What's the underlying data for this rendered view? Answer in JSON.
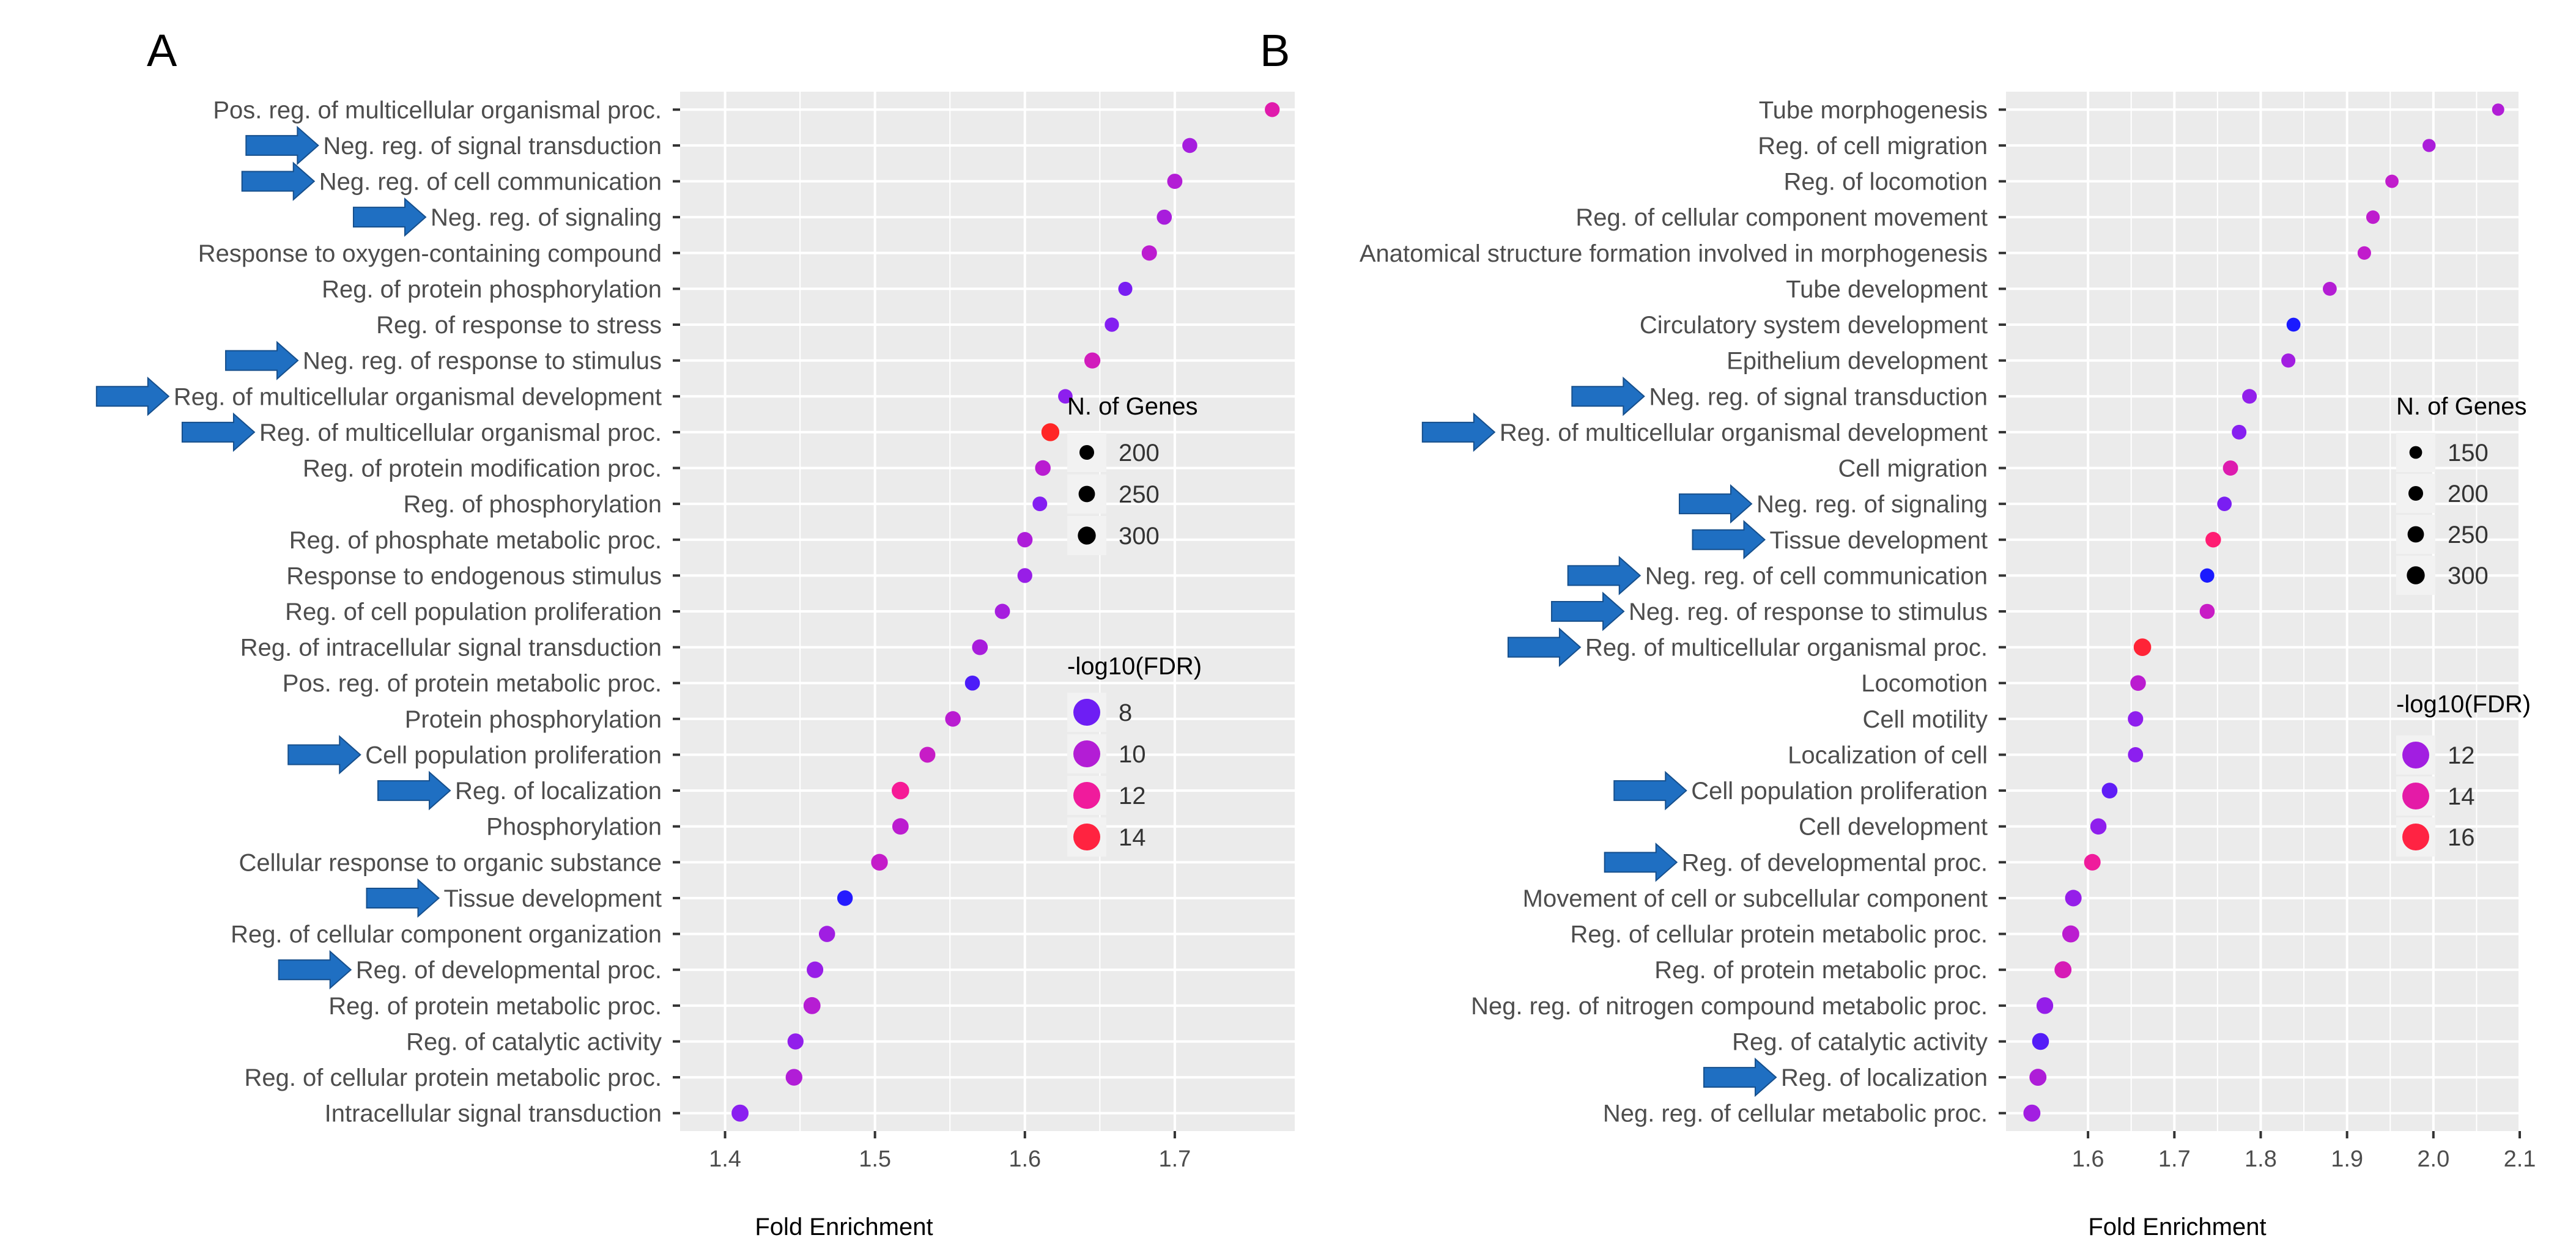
{
  "figure": {
    "panels": [
      "A",
      "B"
    ]
  },
  "colors": {
    "panel_background": "#ebebeb",
    "grid": "#ffffff",
    "arrow": "#1f6fc2",
    "text": "#4d4d4d",
    "title": "#000000",
    "legend_key_bg": "#f2f2f2",
    "fdr_gradient": [
      "#1a1aff",
      "#8a1ff0",
      "#c11ccc",
      "#ff1a8c",
      "#ff2626"
    ]
  },
  "chart_data": [
    {
      "type": "scatter",
      "panel_label": "A",
      "xlabel": "Fold Enrichment",
      "ylabel": "",
      "xlim": [
        1.37,
        1.78
      ],
      "x_ticks": [
        1.4,
        1.5,
        1.6,
        1.7
      ],
      "x_tick_labels": [
        "1.4",
        "1.5",
        "1.6",
        "1.7"
      ],
      "grid": true,
      "categories": [
        "Pos. reg. of multicellular organismal proc.",
        "Neg. reg. of signal transduction",
        "Neg. reg. of cell communication",
        "Neg. reg. of signaling",
        "Response to oxygen-containing compound",
        "Reg. of protein phosphorylation",
        "Reg. of response to stress",
        "Neg. reg. of response to stimulus",
        "Reg. of multicellular organismal development",
        "Reg. of multicellular organismal proc.",
        "Reg. of protein modification proc.",
        "Reg. of phosphorylation",
        "Reg. of phosphate metabolic proc.",
        "Response to endogenous stimulus",
        "Reg. of cell population proliferation",
        "Reg. of intracellular signal transduction",
        "Pos. reg. of protein metabolic proc.",
        "Protein phosphorylation",
        "Cell population proliferation",
        "Reg. of localization",
        "Phosphorylation",
        "Cellular response to organic substance",
        "Tissue development",
        "Reg. of cellular component organization",
        "Reg. of developmental proc.",
        "Reg. of protein metabolic proc.",
        "Reg. of catalytic activity",
        "Reg. of cellular protein metabolic proc.",
        "Intracellular signal transduction"
      ],
      "fold_enrichment": [
        1.765,
        1.71,
        1.7,
        1.693,
        1.683,
        1.667,
        1.658,
        1.645,
        1.627,
        1.617,
        1.612,
        1.61,
        1.6,
        1.6,
        1.585,
        1.57,
        1.565,
        1.552,
        1.535,
        1.517,
        1.517,
        1.503,
        1.48,
        1.468,
        1.46,
        1.458,
        1.447,
        1.446,
        1.41
      ],
      "n_genes": [
        205,
        210,
        215,
        212,
        218,
        185,
        190,
        240,
        195,
        300,
        225,
        200,
        220,
        205,
        215,
        230,
        210,
        225,
        235,
        285,
        250,
        260,
        225,
        245,
        255,
        270,
        240,
        260,
        270
      ],
      "neg_log10_fdr": [
        11.5,
        9.5,
        10.0,
        9.6,
        10.3,
        8.2,
        8.4,
        11.0,
        8.6,
        14.5,
        10.2,
        8.4,
        9.8,
        9.0,
        9.5,
        9.6,
        7.4,
        10.2,
        10.7,
        12.2,
        10.3,
        10.6,
        6.7,
        9.3,
        9.0,
        10.1,
        8.8,
        9.9,
        8.5
      ],
      "arrows": [
        false,
        true,
        true,
        true,
        false,
        false,
        false,
        true,
        true,
        true,
        false,
        false,
        false,
        false,
        false,
        false,
        false,
        false,
        true,
        true,
        false,
        false,
        true,
        false,
        true,
        false,
        false,
        false,
        false
      ],
      "legend_size": {
        "title": "N. of Genes",
        "values": [
          200,
          250,
          300
        ],
        "labels": [
          "200",
          "250",
          "300"
        ]
      },
      "legend_color": {
        "title": "-log10(FDR)",
        "values": [
          8,
          10,
          12,
          14
        ],
        "labels": [
          "8",
          "10",
          "12",
          "14"
        ],
        "range": [
          6.5,
          14.5
        ]
      }
    },
    {
      "type": "scatter",
      "panel_label": "B",
      "xlabel": "Fold Enrichment",
      "ylabel": "",
      "xlim": [
        1.505,
        2.1
      ],
      "x_ticks": [
        1.6,
        1.7,
        1.8,
        1.9,
        2.0,
        2.1
      ],
      "x_tick_labels": [
        "1.6",
        "1.7",
        "1.8",
        "1.9",
        "2.0",
        "2.1"
      ],
      "grid": true,
      "categories": [
        "Tube morphogenesis",
        "Reg. of cell migration",
        "Reg. of locomotion",
        "Reg. of cellular component movement",
        "Anatomical structure formation involved in morphogenesis",
        "Tube development",
        "Circulatory system development",
        "Epithelium development",
        "Neg. reg. of signal transduction",
        "Reg. of multicellular organismal development",
        "Cell migration",
        "Neg. reg. of signaling",
        "Tissue development",
        "Neg. reg. of cell communication",
        "Neg. reg. of response to stimulus",
        "Reg. of multicellular organismal proc.",
        "Locomotion",
        "Cell motility",
        "Localization of cell",
        "Cell population proliferation",
        "Cell development",
        "Reg. of developmental proc.",
        "Movement of cell or subcellular component",
        "Reg. of cellular protein metabolic proc.",
        "Reg. of protein metabolic proc.",
        "Neg. reg. of nitrogen compound metabolic proc.",
        "Reg. of catalytic activity",
        "Reg. of localization",
        "Neg. reg. of cellular metabolic proc."
      ],
      "fold_enrichment": [
        2.075,
        1.995,
        1.952,
        1.93,
        1.92,
        1.88,
        1.838,
        1.832,
        1.787,
        1.775,
        1.765,
        1.758,
        1.745,
        1.738,
        1.738,
        1.663,
        1.658,
        1.655,
        1.655,
        1.625,
        1.612,
        1.605,
        1.583,
        1.58,
        1.571,
        1.55,
        1.545,
        1.542,
        1.535
      ],
      "n_genes": [
        140,
        160,
        165,
        170,
        170,
        180,
        180,
        185,
        200,
        200,
        215,
        195,
        225,
        190,
        210,
        285,
        225,
        220,
        215,
        230,
        245,
        255,
        255,
        270,
        270,
        260,
        265,
        270,
        270
      ],
      "neg_log10_fdr": [
        12.5,
        12.3,
        13.0,
        12.9,
        13.0,
        12.6,
        9.5,
        12.0,
        11.5,
        11.2,
        13.8,
        11.0,
        15.2,
        9.5,
        13.2,
        16.2,
        12.8,
        11.4,
        11.3,
        10.6,
        11.4,
        14.3,
        11.6,
        12.8,
        13.6,
        11.6,
        10.4,
        12.4,
        12.0
      ],
      "arrows": [
        false,
        false,
        false,
        false,
        false,
        false,
        false,
        false,
        true,
        true,
        false,
        true,
        true,
        true,
        true,
        true,
        false,
        false,
        false,
        true,
        false,
        true,
        false,
        false,
        false,
        false,
        false,
        true,
        false
      ],
      "legend_size": {
        "title": "N. of Genes",
        "values": [
          150,
          200,
          250,
          300
        ],
        "labels": [
          "150",
          "200",
          "250",
          "300"
        ]
      },
      "legend_color": {
        "title": "-log10(FDR)",
        "values": [
          12,
          14,
          16
        ],
        "labels": [
          "12",
          "14",
          "16"
        ],
        "range": [
          9.5,
          16.5
        ]
      }
    }
  ]
}
